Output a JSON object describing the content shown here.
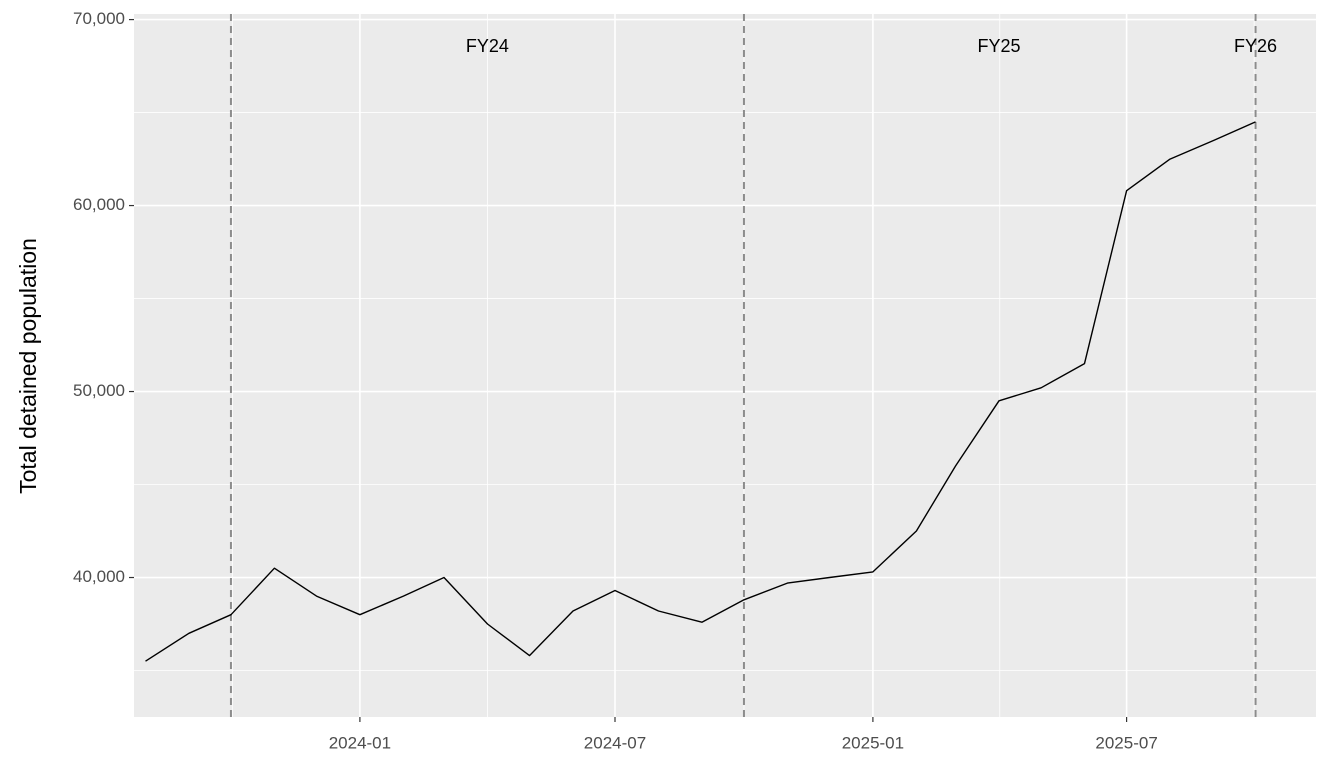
{
  "chart_data": {
    "type": "line",
    "y_label": "Total detained population",
    "x": [
      "2023-08",
      "2023-09",
      "2023-10",
      "2023-11",
      "2023-12",
      "2024-01",
      "2024-02",
      "2024-03",
      "2024-04",
      "2024-05",
      "2024-06",
      "2024-07",
      "2024-08",
      "2024-09",
      "2024-10",
      "2024-11",
      "2024-12",
      "2025-01",
      "2025-02",
      "2025-03",
      "2025-04",
      "2025-05",
      "2025-06",
      "2025-07",
      "2025-08",
      "2025-09",
      "2025-10"
    ],
    "series": [
      {
        "color": "#000000",
        "values": [
          35500,
          37000,
          38000,
          40500,
          39000,
          38000,
          39000,
          40000,
          37500,
          35800,
          38200,
          39300,
          38200,
          37600,
          38800,
          39700,
          40000,
          40300,
          42500,
          46000,
          49500,
          50200,
          51500,
          60800,
          62500,
          63500,
          64500
        ]
      }
    ],
    "xlim": [
      "2023-07",
      "2025-11"
    ],
    "xticks": [
      "2024-01",
      "2024-07",
      "2025-01",
      "2025-07"
    ],
    "ylim": [
      32500,
      70300
    ],
    "yticks": [
      {
        "value": 40000,
        "label": "40,000"
      },
      {
        "value": 50000,
        "label": "50,000"
      },
      {
        "value": 60000,
        "label": "60,000"
      },
      {
        "value": 70000,
        "label": "70,000"
      }
    ],
    "vlines": {
      "x": [
        "2023-10",
        "2024-10",
        "2025-10"
      ],
      "color": "#8c8c8c",
      "dashed": true
    },
    "annotations": [
      {
        "text": "FY24",
        "x": "2024-04"
      },
      {
        "text": "FY25",
        "x": "2025-04"
      },
      {
        "text": "FY26",
        "x": "2025-10"
      }
    ],
    "grid": true
  }
}
